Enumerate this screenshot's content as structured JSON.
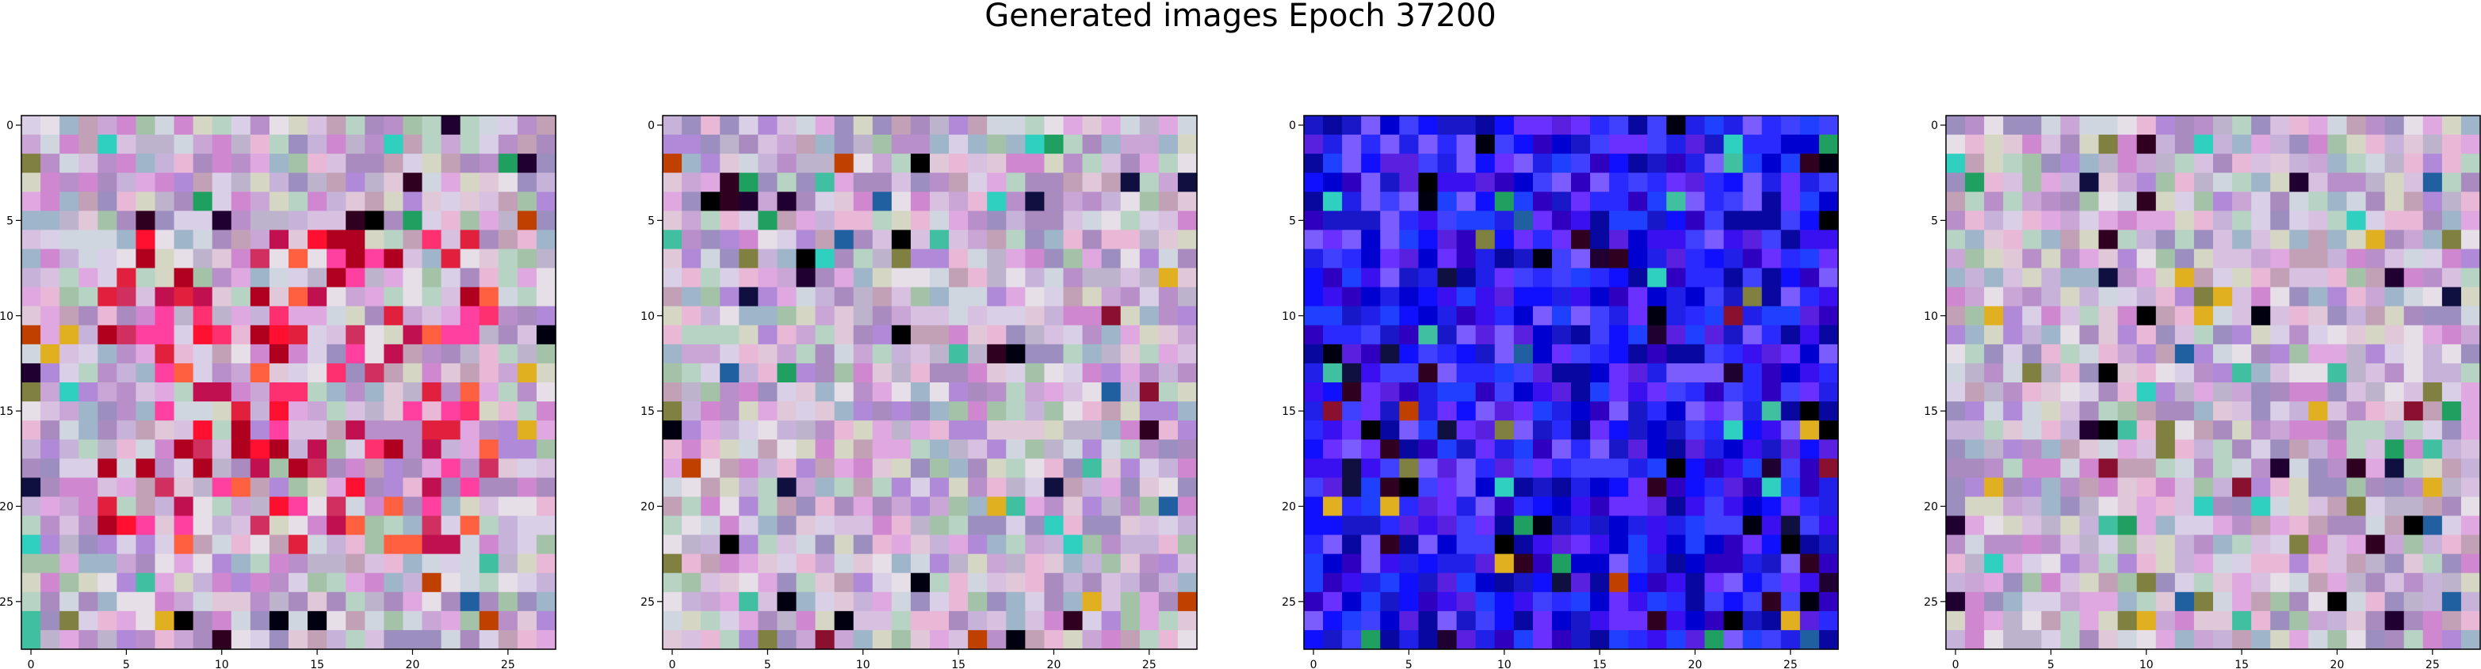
{
  "figure": {
    "title": "Generated images Epoch 37200"
  },
  "chart_data": [
    {
      "type": "heatmap",
      "panel": 1,
      "palette": "mixed-pastel",
      "hotspots": "red",
      "size": [
        28,
        28
      ],
      "xlim": [
        -0.5,
        27.5
      ],
      "ylim": [
        27.5,
        -0.5
      ],
      "xticks": [
        0,
        5,
        10,
        15,
        20,
        25
      ],
      "yticks": [
        0,
        5,
        10,
        15,
        20,
        25
      ],
      "tick_labels": [
        "0",
        "5",
        "10",
        "15",
        "20",
        "25"
      ]
    },
    {
      "type": "heatmap",
      "panel": 2,
      "palette": "mixed-pastel",
      "hotspots": "pale",
      "size": [
        28,
        28
      ],
      "xlim": [
        -0.5,
        27.5
      ],
      "ylim": [
        27.5,
        -0.5
      ],
      "xticks": [
        0,
        5,
        10,
        15,
        20,
        25
      ],
      "yticks": [
        0,
        5,
        10,
        15,
        20,
        25
      ],
      "tick_labels": [
        "0",
        "5",
        "10",
        "15",
        "20",
        "25"
      ]
    },
    {
      "type": "heatmap",
      "panel": 3,
      "palette": "blue",
      "hotspots": "dark",
      "size": [
        28,
        28
      ],
      "xlim": [
        -0.5,
        27.5
      ],
      "ylim": [
        27.5,
        -0.5
      ],
      "xticks": [
        0,
        5,
        10,
        15,
        20,
        25
      ],
      "yticks": [
        0,
        5,
        10,
        15,
        20,
        25
      ],
      "tick_labels": [
        "0",
        "5",
        "10",
        "15",
        "20",
        "25"
      ]
    },
    {
      "type": "heatmap",
      "panel": 4,
      "palette": "mixed-pastel",
      "hotspots": "pale",
      "size": [
        28,
        28
      ],
      "xlim": [
        -0.5,
        27.5
      ],
      "ylim": [
        27.5,
        -0.5
      ],
      "xticks": [
        0,
        5,
        10,
        15,
        20,
        25
      ],
      "yticks": [
        0,
        5,
        10,
        15,
        20,
        25
      ],
      "tick_labels": [
        "0",
        "5",
        "10",
        "15",
        "20",
        "25"
      ]
    }
  ]
}
